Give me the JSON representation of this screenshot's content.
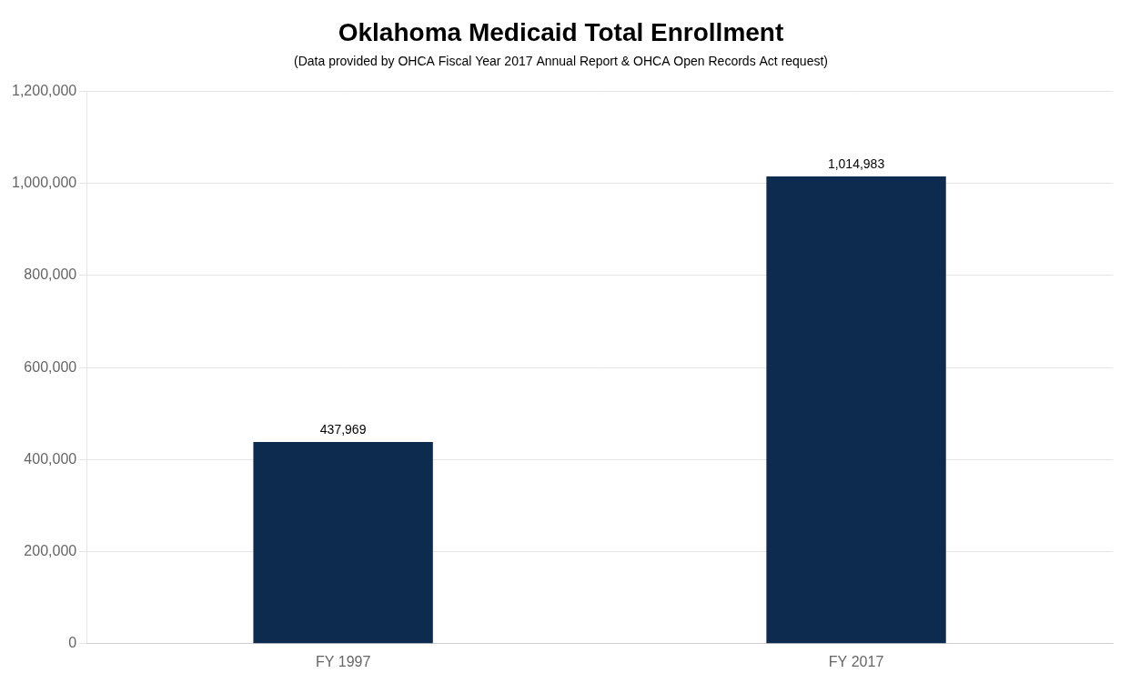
{
  "chart_data": {
    "type": "bar",
    "title": "Oklahoma Medicaid Total Enrollment",
    "subtitle": "(Data provided by OHCA Fiscal Year 2017 Annual Report & OHCA Open Records Act request)",
    "categories": [
      "FY 1997",
      "FY 2017"
    ],
    "values": [
      437969,
      1014983
    ],
    "value_labels": [
      "437,969",
      "1,014,983"
    ],
    "data_labels": true,
    "color": "#0d2b4e",
    "ylim": [
      0,
      1200000
    ],
    "yticks": [
      0,
      {
        "value": 200000,
        "label": "200,000"
      },
      {
        "value": 400000,
        "label": "400,000"
      },
      {
        "value": 600000,
        "label": "600,000"
      },
      {
        "value": 800000,
        "label": "800,000"
      },
      {
        "value": 1000000,
        "label": "1,000,000"
      },
      {
        "value": 1200000,
        "label": "1,200,000"
      }
    ],
    "grid": true
  }
}
